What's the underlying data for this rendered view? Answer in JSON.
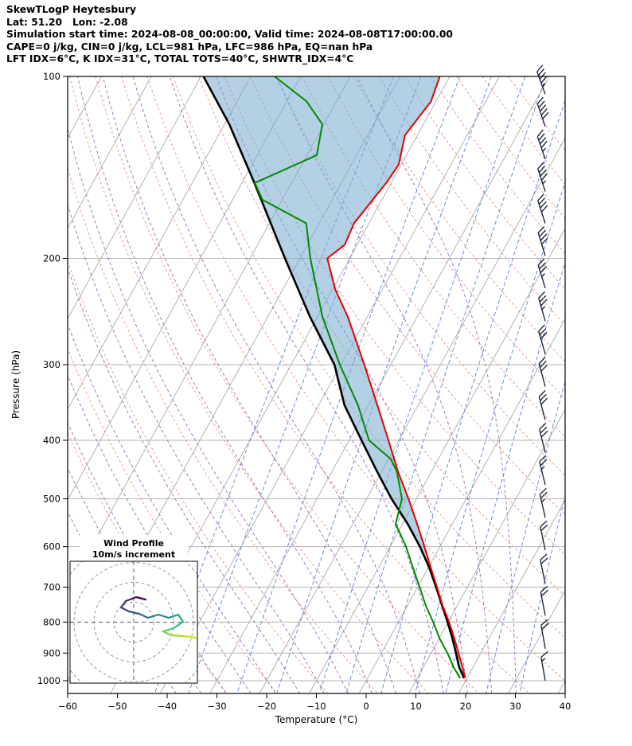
{
  "header": {
    "lines": [
      "SkewTLogP Heytesbury",
      "Lat: 51.20   Lon: -2.08",
      "Simulation start time: 2024-08-08_00:00:00, Valid time: 2024-08-08T17:00:00.00",
      "CAPE=0 j/kg, CIN=0 j/kg, LCL=981 hPa, LFC=986 hPa, EQ=nan hPa",
      "LFT IDX=6°C, K IDX=31°C, TOTAL TOTS=40°C, SHWTR_IDX=4°C"
    ]
  },
  "chart_data": {
    "type": "skewt",
    "title": "SkewTLogP Heytesbury",
    "xlabel": "Temperature (°C)",
    "ylabel": "Pressure (hPa)",
    "xlim": [
      -60,
      40
    ],
    "pressure_range": [
      100,
      1050
    ],
    "skew": 0.55,
    "x_ticks": [
      -60,
      -50,
      -40,
      -30,
      -20,
      -10,
      0,
      10,
      20,
      30,
      40
    ],
    "x_tick_labels": [
      "−60",
      "−50",
      "−40",
      "−30",
      "−20",
      "−10",
      "0",
      "10",
      "20",
      "30",
      "40"
    ],
    "p_ticks": [
      100,
      200,
      300,
      400,
      500,
      600,
      700,
      800,
      900,
      1000
    ],
    "colors": {
      "temperature": "#e60000",
      "dewpoint": "#008a00",
      "parcel": "#000000",
      "cin_fill": "#74a9cf",
      "grid": "#b5b5b5",
      "isotherm": "#ababab",
      "dry_adiabat": "#e58f8f",
      "moist_adiabat": "#9a6fb5",
      "mixing_ratio": "#5f7fd0",
      "barb": "#151a30",
      "frame": "#000000"
    },
    "temperature_profile": [
      [
        990,
        19.6
      ],
      [
        950,
        17.9
      ],
      [
        900,
        15.5
      ],
      [
        850,
        13.0
      ],
      [
        800,
        10.2
      ],
      [
        750,
        7.0
      ],
      [
        700,
        3.9
      ],
      [
        650,
        0.5
      ],
      [
        600,
        -3.1
      ],
      [
        550,
        -7.1
      ],
      [
        500,
        -11.6
      ],
      [
        450,
        -16.8
      ],
      [
        400,
        -22.1
      ],
      [
        350,
        -28.2
      ],
      [
        300,
        -35.3
      ],
      [
        250,
        -43.9
      ],
      [
        225,
        -49.5
      ],
      [
        200,
        -54.5
      ],
      [
        190,
        -52.5
      ],
      [
        175,
        -53.0
      ],
      [
        150,
        -51.0
      ],
      [
        140,
        -50.5
      ],
      [
        125,
        -52.5
      ],
      [
        110,
        -51.0
      ],
      [
        100,
        -52.0
      ]
    ],
    "dewpoint_profile": [
      [
        990,
        18.6
      ],
      [
        950,
        16.1
      ],
      [
        900,
        13.3
      ],
      [
        850,
        10.0
      ],
      [
        800,
        7.0
      ],
      [
        750,
        3.6
      ],
      [
        700,
        0.4
      ],
      [
        650,
        -3.1
      ],
      [
        600,
        -6.8
      ],
      [
        550,
        -11.4
      ],
      [
        500,
        -12.9
      ],
      [
        450,
        -17.0
      ],
      [
        430,
        -19.5
      ],
      [
        400,
        -26.0
      ],
      [
        350,
        -32.1
      ],
      [
        300,
        -40.2
      ],
      [
        250,
        -49.0
      ],
      [
        200,
        -57.9
      ],
      [
        175,
        -62.6
      ],
      [
        160,
        -74.0
      ],
      [
        150,
        -77.4
      ],
      [
        135,
        -68.0
      ],
      [
        120,
        -70.3
      ],
      [
        110,
        -76.0
      ],
      [
        100,
        -85.2
      ]
    ],
    "parcel_profile": [
      [
        990,
        19.4
      ],
      [
        950,
        17.2
      ],
      [
        900,
        15.0
      ],
      [
        850,
        12.6
      ],
      [
        800,
        9.9
      ],
      [
        750,
        6.9
      ],
      [
        700,
        3.7
      ],
      [
        650,
        0.2
      ],
      [
        600,
        -4.0
      ],
      [
        550,
        -9.0
      ],
      [
        500,
        -15.0
      ],
      [
        450,
        -21.0
      ],
      [
        400,
        -27.5
      ],
      [
        350,
        -34.8
      ],
      [
        300,
        -41.3
      ],
      [
        250,
        -51.5
      ],
      [
        200,
        -63.0
      ],
      [
        150,
        -77.5
      ],
      [
        120,
        -89.0
      ],
      [
        100,
        -99.5
      ]
    ],
    "dry_adiabats_theta_c": [
      -30,
      -20,
      -10,
      0,
      10,
      20,
      30,
      40,
      50,
      60,
      70,
      80,
      90,
      100,
      110,
      120,
      130,
      140,
      150,
      160,
      170,
      180
    ],
    "moist_adiabat_starts_c": [
      -40,
      -35,
      -30,
      -25,
      -20,
      -15,
      -10,
      -5,
      0,
      5,
      10,
      15,
      20,
      25,
      30
    ],
    "mixing_ratios_gkg": [
      0.1,
      0.2,
      0.5,
      1,
      2,
      3,
      5,
      8,
      12,
      20,
      30
    ],
    "wind_barbs": [
      {
        "p": 1000,
        "speed_kt": 15,
        "dir_deg": 350
      },
      {
        "p": 885,
        "speed_kt": 18,
        "dir_deg": 350
      },
      {
        "p": 780,
        "speed_kt": 20,
        "dir_deg": 349
      },
      {
        "p": 690,
        "speed_kt": 20,
        "dir_deg": 348
      },
      {
        "p": 608,
        "speed_kt": 22,
        "dir_deg": 348
      },
      {
        "p": 537,
        "speed_kt": 25,
        "dir_deg": 347
      },
      {
        "p": 474,
        "speed_kt": 25,
        "dir_deg": 346
      },
      {
        "p": 419,
        "speed_kt": 28,
        "dir_deg": 346
      },
      {
        "p": 370,
        "speed_kt": 28,
        "dir_deg": 345
      },
      {
        "p": 326,
        "speed_kt": 30,
        "dir_deg": 345
      },
      {
        "p": 288,
        "speed_kt": 32,
        "dir_deg": 344
      },
      {
        "p": 254,
        "speed_kt": 35,
        "dir_deg": 344
      },
      {
        "p": 224,
        "speed_kt": 35,
        "dir_deg": 343
      },
      {
        "p": 198,
        "speed_kt": 38,
        "dir_deg": 343
      },
      {
        "p": 175,
        "speed_kt": 42,
        "dir_deg": 342
      },
      {
        "p": 155,
        "speed_kt": 45,
        "dir_deg": 342
      },
      {
        "p": 137,
        "speed_kt": 45,
        "dir_deg": 341
      },
      {
        "p": 121,
        "speed_kt": 48,
        "dir_deg": 341
      },
      {
        "p": 107,
        "speed_kt": 45,
        "dir_deg": 340
      }
    ],
    "hodograph": {
      "title": "Wind Profile",
      "subtitle": "10m/s increment",
      "ring_interval_ms": 10,
      "rings_ms": [
        10,
        20,
        30,
        40
      ],
      "trace_ms": [
        [
          6.0,
          11.4
        ],
        [
          1.2,
          12.6
        ],
        [
          -4.0,
          10.6
        ],
        [
          -6.4,
          7.4
        ],
        [
          -2.4,
          5.4
        ],
        [
          2.8,
          4.2
        ],
        [
          7.2,
          2.2
        ],
        [
          12.4,
          3.8
        ],
        [
          17.6,
          2.2
        ],
        [
          22.4,
          3.8
        ],
        [
          24.8,
          0.2
        ],
        [
          20.0,
          -3.0
        ],
        [
          14.8,
          -4.6
        ],
        [
          18.8,
          -6.6
        ],
        [
          25.6,
          -7.0
        ],
        [
          31.2,
          -7.8
        ]
      ],
      "segment_colors": [
        "#440154",
        "#481a6c",
        "#472f7d",
        "#414487",
        "#39568c",
        "#31688e",
        "#2a788e",
        "#23888e",
        "#1f988b",
        "#22a884",
        "#35b779",
        "#54c568",
        "#7ad151",
        "#a5db36",
        "#d2e21b"
      ]
    }
  }
}
